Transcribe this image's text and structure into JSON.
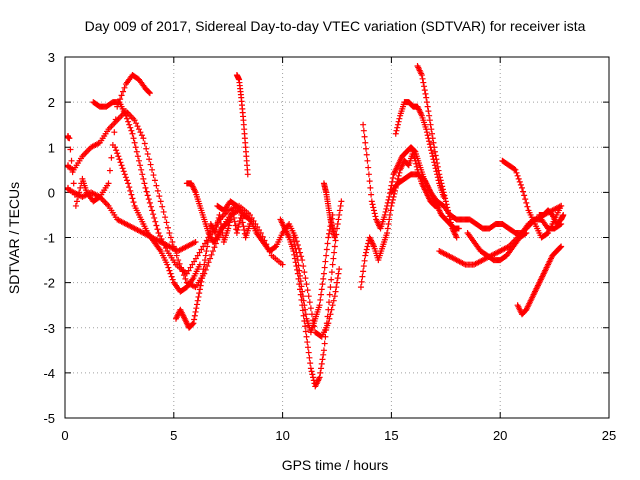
{
  "chart_data": {
    "type": "scatter",
    "title": "Day 009 of 2017, Sidereal Day-to-day VTEC variation (SDTVAR) for receiver ista",
    "xlabel": "GPS time / hours",
    "ylabel": "SDTVAR / TECUs",
    "xlim": [
      0,
      25
    ],
    "ylim": [
      -5,
      3
    ],
    "xticks": [
      0,
      5,
      10,
      15,
      20,
      25
    ],
    "yticks": [
      -5,
      -4,
      -3,
      -2,
      -1,
      0,
      1,
      2,
      3
    ],
    "grid": true,
    "marker": "+",
    "color": "#ff0000",
    "series": [
      {
        "x": [
          0.0,
          0.2,
          0.5,
          0.8,
          1.0,
          1.3,
          1.6,
          2.0,
          2.4,
          2.8,
          3.1,
          3.4,
          3.7,
          3.9
        ],
        "y": [
          1.25,
          1.2,
          -0.3,
          0.3,
          0.0,
          -0.2,
          -0.1,
          0.2,
          1.9,
          2.4,
          2.6,
          2.5,
          2.3,
          2.2
        ]
      },
      {
        "x": [
          1.3,
          1.6,
          1.9,
          2.2,
          2.5,
          2.8,
          3.1,
          3.4,
          3.7,
          4.0,
          4.3,
          4.7,
          5.1,
          5.6,
          6.1,
          6.6,
          7.1,
          7.5,
          8.0,
          8.5,
          9.0,
          9.5,
          10.0
        ],
        "y": [
          2.0,
          1.9,
          1.9,
          2.0,
          2.0,
          1.7,
          1.3,
          0.7,
          0.1,
          -0.4,
          -0.9,
          -1.3,
          -1.6,
          -1.8,
          -1.4,
          -1.0,
          -0.6,
          -0.4,
          -0.3,
          -0.5,
          -0.9,
          -1.4,
          -1.6
        ]
      },
      {
        "x": [
          0.0,
          0.4,
          0.8,
          1.2,
          1.6,
          2.0,
          2.4,
          2.8,
          3.2,
          3.6,
          4.0,
          4.4,
          4.8,
          5.2,
          5.6,
          6.0,
          6.4,
          6.8,
          7.2,
          7.6,
          8.0
        ],
        "y": [
          0.6,
          0.5,
          0.8,
          1.0,
          1.1,
          1.4,
          1.6,
          1.8,
          1.6,
          1.2,
          0.5,
          -0.2,
          -0.9,
          -1.5,
          -2.0,
          -2.1,
          -1.8,
          -1.3,
          -0.8,
          -0.5,
          -0.4
        ]
      },
      {
        "x": [
          0.0,
          0.4,
          0.8,
          1.2,
          1.6,
          2.0,
          2.4,
          2.8,
          3.2,
          3.6,
          4.0,
          4.4,
          4.8,
          5.2,
          5.6,
          6.0
        ],
        "y": [
          0.1,
          0.0,
          -0.1,
          0.0,
          -0.1,
          -0.3,
          -0.6,
          -0.7,
          -0.8,
          -0.9,
          -1.0,
          -1.1,
          -1.2,
          -1.3,
          -1.2,
          -1.1
        ]
      },
      {
        "x": [
          2.3,
          2.6,
          2.9,
          3.2,
          3.5,
          3.8,
          4.1,
          4.4,
          4.7,
          5.0,
          5.3,
          5.6,
          5.9,
          6.2
        ],
        "y": [
          1.0,
          0.6,
          0.2,
          -0.3,
          -0.6,
          -0.9,
          -1.1,
          -1.3,
          -1.6,
          -2.0,
          -2.2,
          -2.1,
          -1.9,
          -1.6
        ]
      },
      {
        "x": [
          5.1,
          5.3,
          5.5,
          5.7,
          5.9,
          6.1,
          6.3,
          6.5,
          6.7,
          6.9,
          7.1,
          7.3,
          7.5,
          7.7,
          7.9,
          8.1,
          8.3,
          8.5
        ],
        "y": [
          -2.8,
          -2.6,
          -2.8,
          -3.0,
          -2.9,
          -2.4,
          -1.9,
          -1.3,
          -0.7,
          -0.9,
          -0.5,
          -1.1,
          -0.8,
          -0.4,
          -0.9,
          -0.5,
          -1.0,
          -0.7
        ]
      },
      {
        "x": [
          5.6,
          5.8,
          6.0,
          6.2,
          6.4,
          6.6,
          6.8,
          7.0,
          7.2,
          7.4,
          7.6
        ],
        "y": [
          0.2,
          0.2,
          0.0,
          -0.3,
          -0.6,
          -0.9,
          -1.1,
          -1.0,
          -0.8,
          -0.7,
          -0.6
        ]
      },
      {
        "x": [
          7.9,
          8.0,
          8.1,
          8.2,
          8.3,
          8.4
        ],
        "y": [
          2.6,
          2.5,
          2.1,
          1.6,
          1.0,
          0.4
        ]
      },
      {
        "x": [
          7.0,
          7.3,
          7.6,
          7.9,
          8.2,
          8.5,
          8.8,
          9.1,
          9.4,
          9.7,
          10.0,
          10.3,
          10.6,
          10.9,
          11.2,
          11.5,
          11.8,
          12.1,
          12.4,
          12.6
        ],
        "y": [
          -0.3,
          -0.4,
          -0.2,
          -0.3,
          -0.5,
          -0.6,
          -0.9,
          -1.1,
          -1.3,
          -1.2,
          -0.9,
          -0.7,
          -1.0,
          -1.5,
          -2.3,
          -3.1,
          -3.2,
          -2.9,
          -2.3,
          -1.7
        ]
      },
      {
        "x": [
          9.9,
          10.1,
          10.3,
          10.5,
          10.7,
          10.9,
          11.1,
          11.3,
          11.5,
          11.7,
          11.9,
          12.1,
          12.3,
          12.5,
          12.7
        ],
        "y": [
          -0.6,
          -0.8,
          -1.0,
          -1.3,
          -1.8,
          -2.5,
          -3.2,
          -3.9,
          -4.3,
          -4.1,
          -3.5,
          -2.6,
          -1.6,
          -0.8,
          -0.2
        ]
      },
      {
        "x": [
          10.5,
          10.7,
          10.9,
          11.1,
          11.3,
          11.5,
          11.7,
          11.9,
          12.1,
          12.3
        ],
        "y": [
          -1.0,
          -1.5,
          -2.2,
          -2.8,
          -3.1,
          -2.8,
          -2.5,
          -1.8,
          -1.0,
          -0.5
        ]
      },
      {
        "x": [
          11.9,
          12.0,
          12.1,
          12.2,
          12.3,
          12.4
        ],
        "y": [
          0.2,
          0.0,
          -0.3,
          -0.6,
          -0.8,
          -1.0
        ]
      },
      {
        "x": [
          13.6,
          13.8,
          14.0,
          14.2,
          14.4,
          14.6,
          14.8,
          15.0,
          15.2,
          15.4,
          15.6,
          15.8,
          16.0,
          16.2,
          16.4,
          16.6,
          16.8,
          17.0,
          17.2
        ],
        "y": [
          -2.1,
          -1.4,
          -1.0,
          -1.2,
          -1.5,
          -1.2,
          -0.9,
          -0.3,
          0.1,
          0.5,
          0.7,
          0.6,
          0.9,
          0.5,
          0.2,
          0.0,
          -0.2,
          -0.3,
          -0.3
        ]
      },
      {
        "x": [
          13.7,
          13.9,
          14.1,
          14.3,
          14.5,
          14.7,
          14.9,
          15.1,
          15.3,
          15.5,
          15.7,
          15.9,
          16.1,
          16.3,
          16.5,
          16.7,
          16.9,
          17.1,
          17.3,
          17.5,
          17.7,
          17.9,
          18.1
        ],
        "y": [
          1.5,
          0.7,
          -0.2,
          -0.6,
          -0.8,
          -0.5,
          -0.1,
          0.4,
          0.6,
          0.8,
          0.9,
          1.0,
          0.9,
          0.6,
          0.3,
          0.1,
          -0.1,
          -0.3,
          -0.5,
          -0.6,
          -0.7,
          -0.8,
          -0.8
        ]
      },
      {
        "x": [
          15.0,
          15.3,
          15.6,
          15.9,
          16.2,
          16.5,
          16.8,
          17.1,
          17.4,
          17.7,
          18.0,
          18.3,
          18.6,
          18.9,
          19.2,
          19.5,
          19.8,
          20.1,
          20.4,
          20.7,
          21.0,
          21.3,
          21.6,
          21.9,
          22.2,
          22.5,
          22.8
        ],
        "y": [
          0.0,
          0.2,
          0.3,
          0.4,
          0.4,
          0.3,
          0.0,
          -0.2,
          -0.3,
          -0.5,
          -0.6,
          -0.6,
          -0.6,
          -0.7,
          -0.8,
          -0.8,
          -0.7,
          -0.7,
          -0.8,
          -0.9,
          -0.9,
          -0.7,
          -0.6,
          -0.6,
          -0.8,
          -0.8,
          -0.7
        ]
      },
      {
        "x": [
          15.2,
          15.4,
          15.6,
          15.8,
          16.0,
          16.2,
          16.4,
          16.6,
          16.8,
          17.0,
          17.2,
          17.4
        ],
        "y": [
          1.3,
          1.7,
          2.0,
          2.0,
          1.9,
          1.9,
          1.7,
          1.4,
          1.0,
          0.6,
          0.2,
          -0.1
        ]
      },
      {
        "x": [
          16.2,
          16.4,
          16.6,
          16.8,
          17.0,
          17.2,
          17.4,
          17.6,
          17.8,
          18.0
        ],
        "y": [
          2.8,
          2.6,
          2.1,
          1.5,
          0.9,
          0.4,
          0.0,
          -0.4,
          -0.8,
          -1.0
        ]
      },
      {
        "x": [
          17.2,
          17.6,
          18.0,
          18.4,
          18.8,
          19.2,
          19.6,
          20.0,
          20.4,
          20.8,
          21.2,
          21.6,
          22.0,
          22.4,
          22.8
        ],
        "y": [
          -1.3,
          -1.4,
          -1.5,
          -1.6,
          -1.6,
          -1.5,
          -1.4,
          -1.3,
          -1.2,
          -1.0,
          -0.8,
          -0.6,
          -0.5,
          -0.4,
          -0.3
        ]
      },
      {
        "x": [
          18.5,
          18.8,
          19.1,
          19.4,
          19.7,
          20.0,
          20.3,
          20.6,
          20.9,
          21.2
        ],
        "y": [
          -0.9,
          -1.1,
          -1.3,
          -1.4,
          -1.5,
          -1.5,
          -1.4,
          -1.2,
          -1.0,
          -0.9
        ]
      },
      {
        "x": [
          20.1,
          20.4,
          20.7,
          21.0,
          21.3,
          21.6,
          21.9,
          22.2,
          22.5,
          22.8
        ],
        "y": [
          0.7,
          0.6,
          0.5,
          0.1,
          -0.4,
          -0.7,
          -1.0,
          -0.9,
          -0.6,
          -0.3
        ]
      },
      {
        "x": [
          20.8,
          21.0,
          21.2,
          21.4,
          21.6,
          21.8,
          22.0,
          22.2,
          22.4,
          22.6,
          22.8
        ],
        "y": [
          -2.5,
          -2.7,
          -2.6,
          -2.4,
          -2.2,
          -2.0,
          -1.8,
          -1.6,
          -1.4,
          -1.3,
          -1.2
        ]
      },
      {
        "x": [
          21.8,
          22.0,
          22.2,
          22.4,
          22.6,
          22.8,
          22.9
        ],
        "y": [
          -0.5,
          -0.5,
          -0.4,
          -0.5,
          -0.7,
          -0.6,
          -0.5
        ]
      }
    ]
  }
}
